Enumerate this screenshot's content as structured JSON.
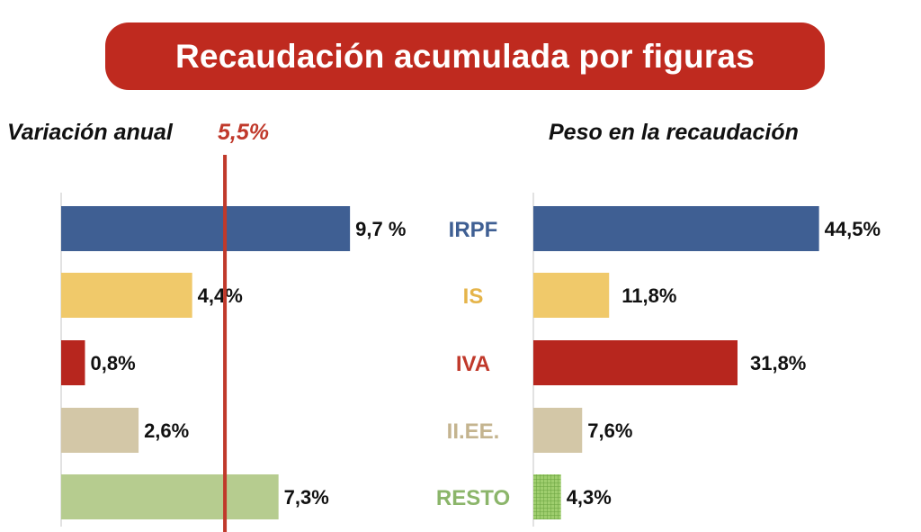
{
  "title": "Recaudación acumulada por figuras",
  "chart_data": [
    {
      "type": "bar",
      "orientation": "horizontal",
      "title": "Variación anual",
      "reference_line": {
        "label": "5,5%",
        "value": 5.5,
        "color": "#c0392b"
      },
      "categories": [
        "IRPF",
        "IS",
        "IVA",
        "II.EE.",
        "RESTO"
      ],
      "values": [
        9.7,
        4.4,
        0.8,
        2.6,
        7.3
      ],
      "value_labels": [
        "9,7 %",
        "4,4%",
        "0,8%",
        "2,6%",
        "7,3%"
      ],
      "xlim": [
        0,
        13.2
      ],
      "colors": [
        "#3f5f93",
        "#f0c96a",
        "#b7261e",
        "#d3c7a7",
        "#b6cc8f"
      ]
    },
    {
      "type": "bar",
      "orientation": "horizontal",
      "title": "Peso en la recaudación",
      "categories": [
        "IRPF",
        "IS",
        "IVA",
        "II.EE.",
        "RESTO"
      ],
      "values": [
        44.5,
        11.8,
        31.8,
        7.6,
        4.3
      ],
      "value_labels": [
        "44,5%",
        "11,8%",
        "31,8%",
        "7,6%",
        "4,3%"
      ],
      "xlim": [
        0,
        58
      ],
      "colors": [
        "#3f5f93",
        "#f0c96a",
        "#b7261e",
        "#d3c7a7",
        "#8fbf5a"
      ]
    }
  ],
  "category_label_colors": [
    "#3f5f93",
    "#e5b44a",
    "#c0392b",
    "#c4b48f",
    "#8bb56a"
  ]
}
